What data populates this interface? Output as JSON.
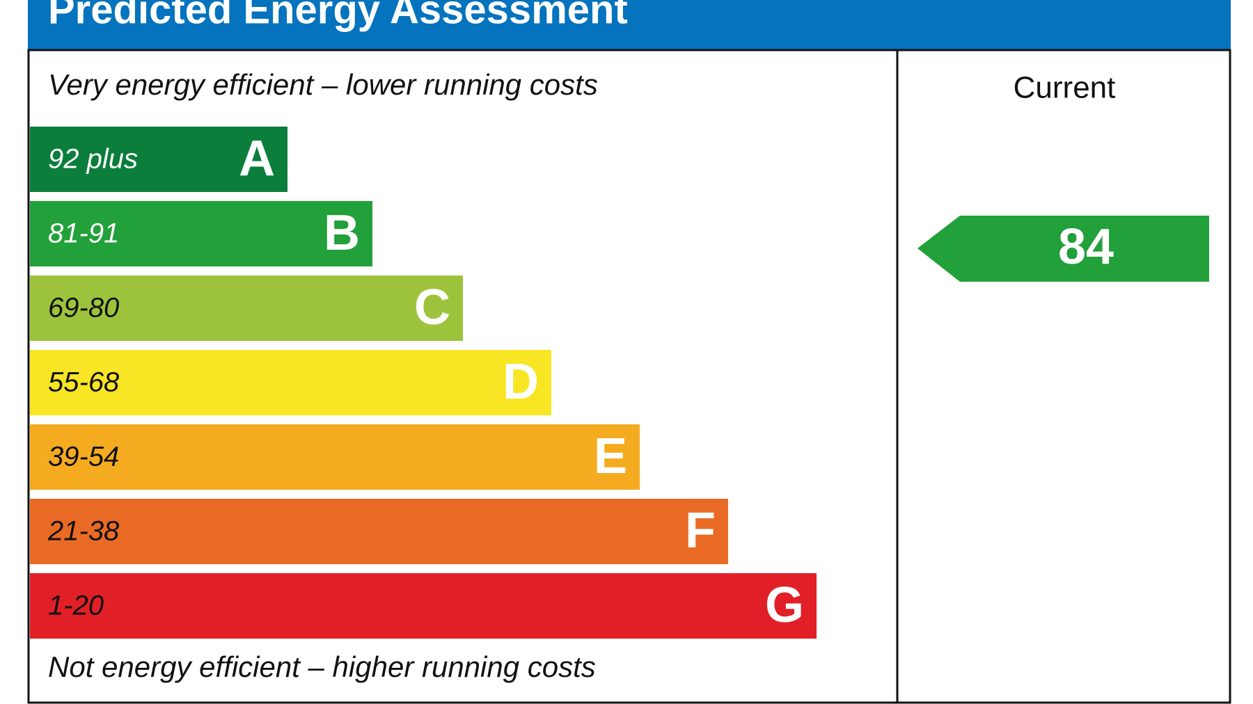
{
  "header": {
    "title": "Predicted Energy Assessment"
  },
  "top_note": "Very energy efficient – lower running costs",
  "bottom_note": "Not energy efficient – higher running costs",
  "bands": [
    {
      "range": "92 plus",
      "letter": "A",
      "color": "#0b7e3c"
    },
    {
      "range": "81-91",
      "letter": "B",
      "color": "#22a03a"
    },
    {
      "range": "69-80",
      "letter": "C",
      "color": "#9dc33c"
    },
    {
      "range": "55-68",
      "letter": "D",
      "color": "#f8e524"
    },
    {
      "range": "39-54",
      "letter": "E",
      "color": "#f5ab20"
    },
    {
      "range": "21-38",
      "letter": "F",
      "color": "#e96a24"
    },
    {
      "range": "1-20",
      "letter": "G",
      "color": "#e11f26"
    }
  ],
  "current": {
    "label": "Current",
    "value": "84",
    "color": "#22a03a"
  }
}
